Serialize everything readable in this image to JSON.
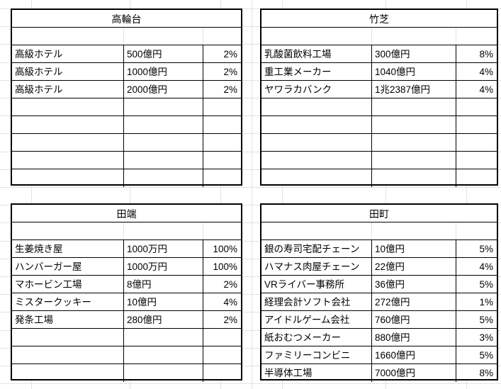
{
  "sheet": {
    "background": "#ffffff",
    "gridline_color": "#e2e2e2",
    "table_border_color": "#000000",
    "text_color": "#000000"
  },
  "tables": [
    {
      "id": "takanawadai",
      "title": "高輪台",
      "rows": [
        {
          "name": "高級ホテル",
          "amount": "500億円",
          "percent": "2%"
        },
        {
          "name": "高級ホテル",
          "amount": "1000億円",
          "percent": "2%"
        },
        {
          "name": "高級ホテル",
          "amount": "2000億円",
          "percent": "2%"
        }
      ],
      "empty_rows": 5
    },
    {
      "id": "takeshiba",
      "title": "竹芝",
      "rows": [
        {
          "name": "乳酸菌飲料工場",
          "amount": "300億円",
          "percent": "8%"
        },
        {
          "name": "重工業メーカー",
          "amount": "1040億円",
          "percent": "4%"
        },
        {
          "name": "ヤワラカバンク",
          "amount": "1兆2387億円",
          "percent": "4%"
        }
      ],
      "empty_rows": 5
    },
    {
      "id": "tabata",
      "title": "田端",
      "rows": [
        {
          "name": "生姜焼き屋",
          "amount": "1000万円",
          "percent": "100%"
        },
        {
          "name": "ハンバーガー屋",
          "amount": "1000万円",
          "percent": "100%"
        },
        {
          "name": "マホービン工場",
          "amount": "8億円",
          "percent": "2%"
        },
        {
          "name": "ミスタークッキー",
          "amount": "10億円",
          "percent": "4%"
        },
        {
          "name": "発条工場",
          "amount": "280億円",
          "percent": "2%"
        }
      ],
      "empty_rows": 3
    },
    {
      "id": "tamachi",
      "title": "田町",
      "rows": [
        {
          "name": "銀の寿司宅配チェーン",
          "amount": "10億円",
          "percent": "5%"
        },
        {
          "name": "ハマナス肉屋チェーン",
          "amount": "22億円",
          "percent": "4%"
        },
        {
          "name": "VRライバー事務所",
          "amount": "36億円",
          "percent": "5%"
        },
        {
          "name": "経理会計ソフト会社",
          "amount": "272億円",
          "percent": "1%"
        },
        {
          "name": "アイドルゲーム会社",
          "amount": "760億円",
          "percent": "5%"
        },
        {
          "name": "紙おむつメーカー",
          "amount": "880億円",
          "percent": "3%"
        },
        {
          "name": "ファミリーコンビニ",
          "amount": "1660億円",
          "percent": "5%"
        },
        {
          "name": "半導体工場",
          "amount": "7000億円",
          "percent": "8%"
        }
      ],
      "empty_rows": 0
    }
  ]
}
